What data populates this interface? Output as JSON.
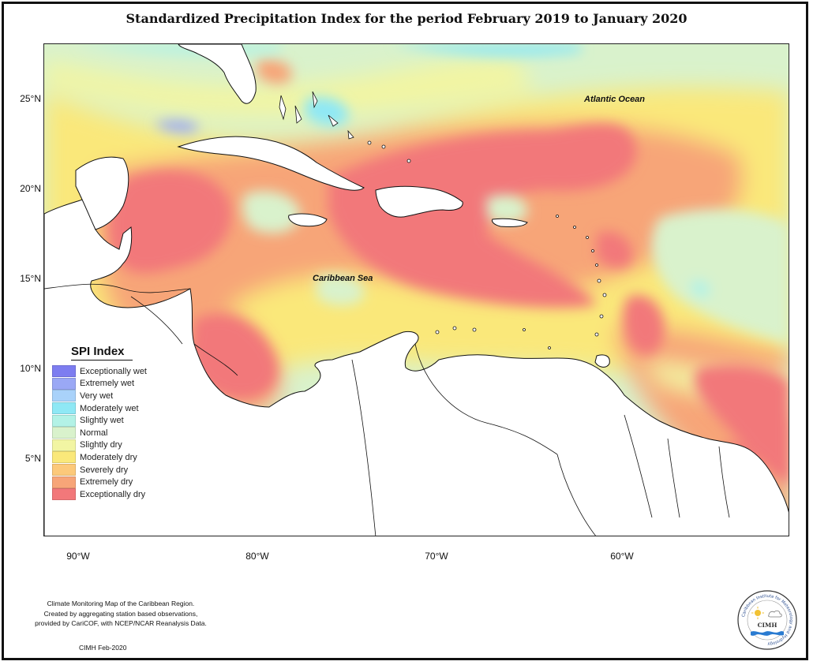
{
  "title": "Standardized Precipitation Index for the period February 2019 to January 2020",
  "axes": {
    "lat_labels": [
      "25°N",
      "20°N",
      "15°N",
      "10°N",
      "5°N"
    ],
    "lon_labels": [
      "90°W",
      "80°W",
      "70°W",
      "60°W"
    ]
  },
  "places": {
    "atlantic": "Atlantic Ocean",
    "caribbean": "Caribbean Sea"
  },
  "legend": {
    "title": "SPI Index",
    "items": [
      {
        "label": "Exceptionally wet",
        "color": "#7d7df0"
      },
      {
        "label": "Extremely wet",
        "color": "#9aa8f5"
      },
      {
        "label": "Very wet",
        "color": "#a9d2fa"
      },
      {
        "label": "Moderately wet",
        "color": "#8fe8f5"
      },
      {
        "label": "Slightly wet",
        "color": "#b3f2e6"
      },
      {
        "label": "Normal",
        "color": "#d9f2cc"
      },
      {
        "label": "Slightly dry",
        "color": "#f2f5a3"
      },
      {
        "label": "Moderately dry",
        "color": "#fae87a"
      },
      {
        "label": "Severely dry",
        "color": "#fcc97a"
      },
      {
        "label": "Extremely dry",
        "color": "#f7a578"
      },
      {
        "label": "Exceptionally dry",
        "color": "#f2787a"
      }
    ]
  },
  "credits": {
    "line1": "Climate Monitoring Map of the Caribbean Region.",
    "line2": "Created by aggregating station based observations,",
    "line3": "provided by CariCOF, with NCEP/NCAR Reanalysis Data.",
    "date": "CIMH Feb-2020"
  },
  "logo": {
    "ring_text": "Caribbean Institute for Meteorology and Hydrology",
    "abbr": "CIMH"
  }
}
